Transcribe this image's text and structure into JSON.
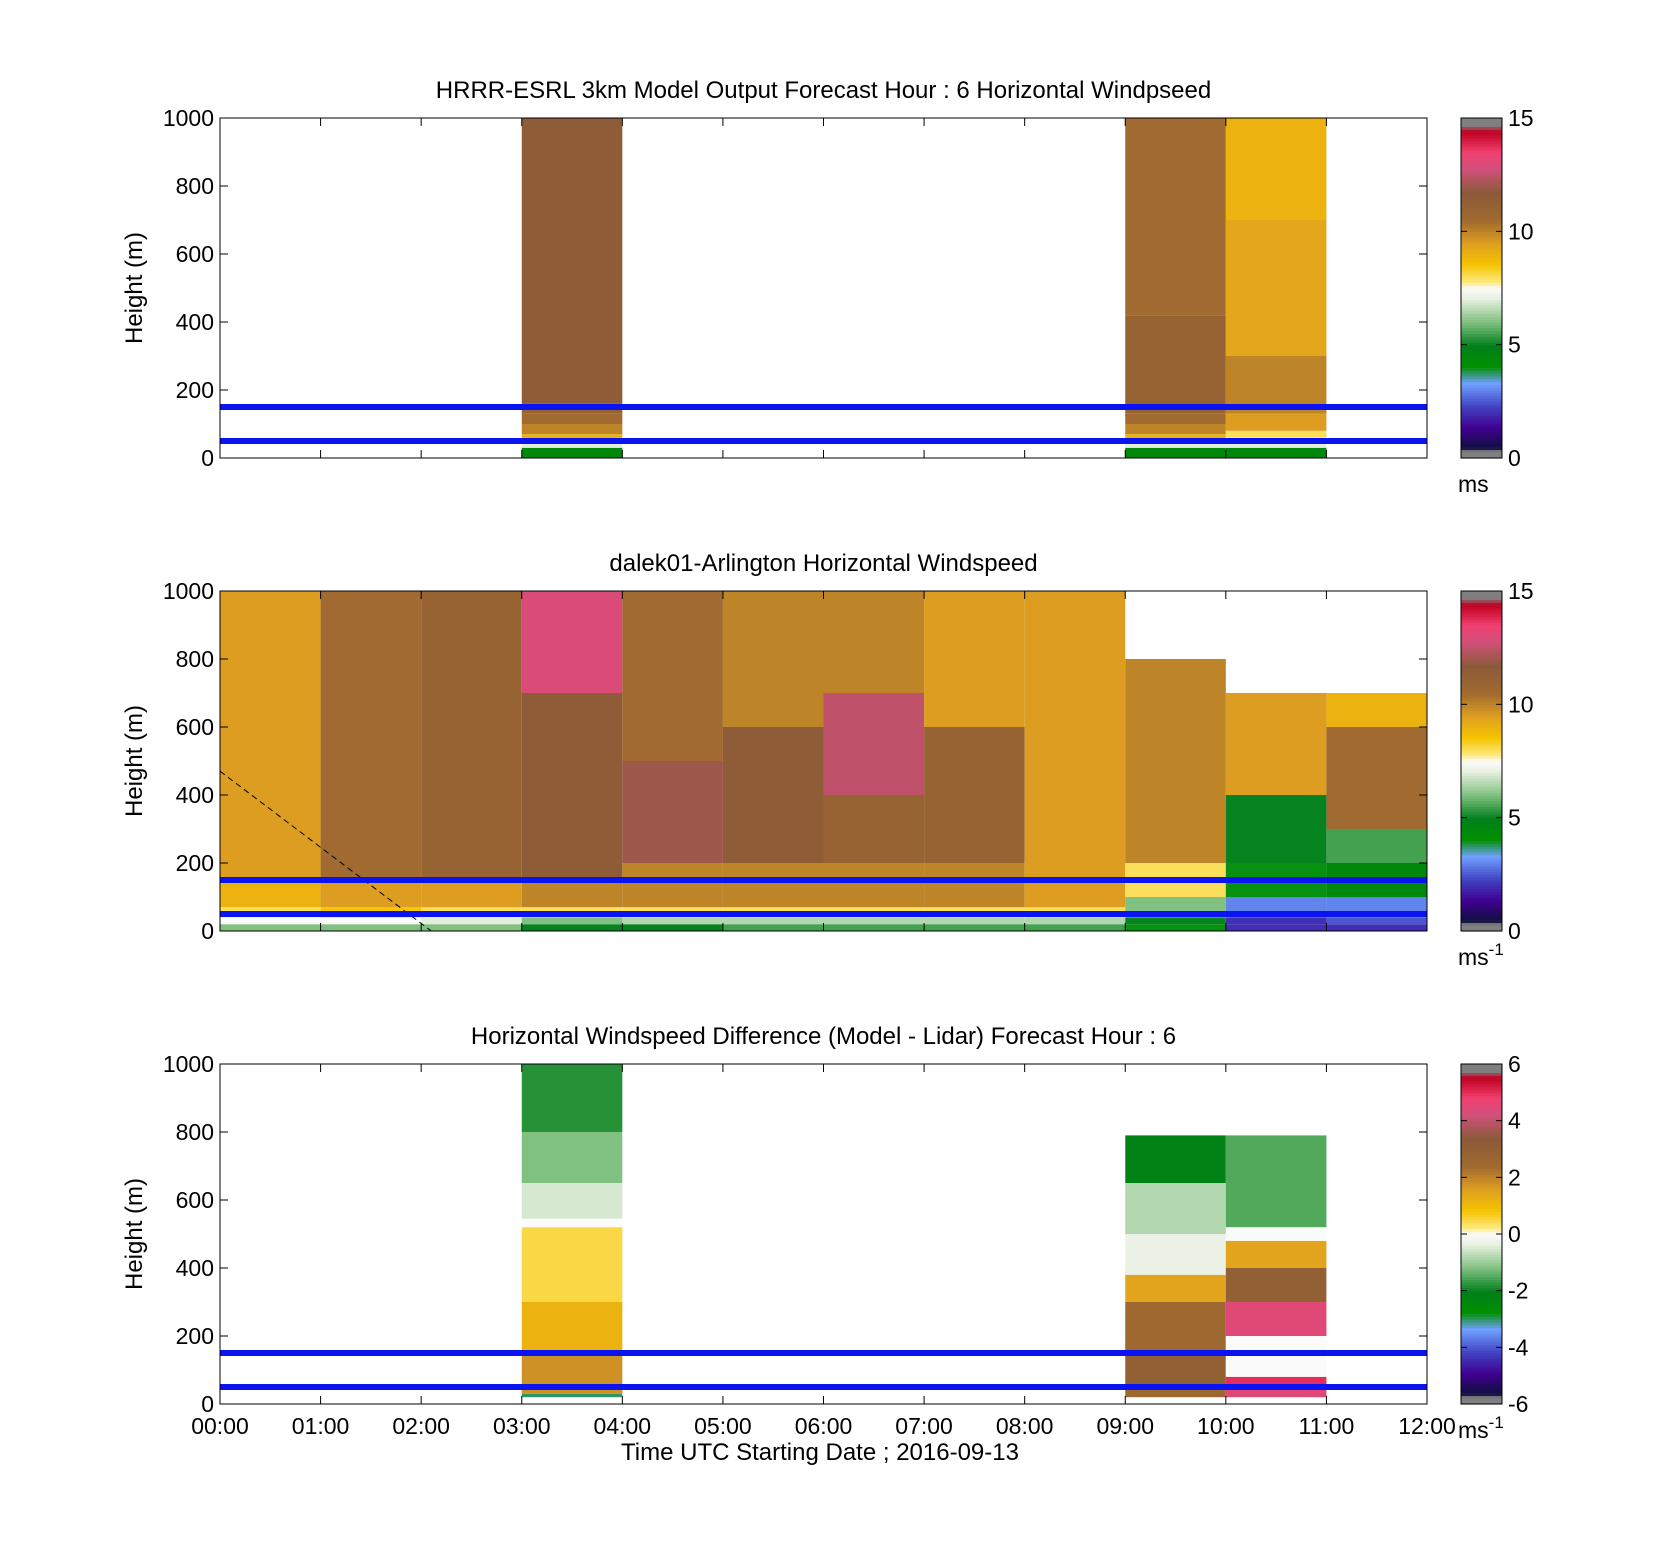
{
  "x_tick_labels": [
    "00:00",
    "01:00",
    "02:00",
    "03:00",
    "04:00",
    "05:00",
    "06:00",
    "07:00",
    "08:00",
    "09:00",
    "10:00",
    "11:00",
    "12:00"
  ],
  "x_label": "Time UTC  Starting Date ; 2016-09-13",
  "y_label": "Height (m)",
  "y_tick_labels": [
    "0",
    "200",
    "400",
    "600",
    "800",
    "1000"
  ],
  "reference_line_color": "#0a14f0",
  "chart_data": [
    {
      "type": "heatmap",
      "title": "HRRR-ESRL 3km Model Output   Forecast Hour : 6 Horizontal Windpseed",
      "xlim": [
        0,
        12
      ],
      "ylim": [
        0,
        1000
      ],
      "colorbar": {
        "min": 0,
        "max": 15,
        "ticks": [
          "0",
          "5",
          "10",
          "15"
        ],
        "unit": "ms",
        "unit_exp": ""
      },
      "reference_lines_m": [
        50,
        150
      ],
      "columns": [
        {
          "t_start": 3,
          "t_end": 4,
          "profile": [
            [
              0,
              30,
              4.5
            ],
            [
              30,
              50,
              7
            ],
            [
              50,
              70,
              9
            ],
            [
              70,
              100,
              10
            ],
            [
              100,
              130,
              10.5
            ],
            [
              130,
              160,
              11
            ],
            [
              160,
              1000,
              11.5
            ]
          ]
        },
        {
          "t_start": 9,
          "t_end": 10,
          "profile": [
            [
              0,
              30,
              4.5
            ],
            [
              30,
              50,
              7
            ],
            [
              50,
              70,
              9
            ],
            [
              70,
              100,
              10
            ],
            [
              100,
              130,
              10.5
            ],
            [
              130,
              420,
              11
            ],
            [
              420,
              1000,
              10.5
            ]
          ]
        },
        {
          "t_start": 10,
          "t_end": 11,
          "profile": [
            [
              0,
              30,
              4.5
            ],
            [
              30,
              60,
              7
            ],
            [
              60,
              80,
              8
            ],
            [
              80,
              130,
              9.5
            ],
            [
              130,
              300,
              10
            ],
            [
              300,
              700,
              9.3
            ],
            [
              700,
              1000,
              9
            ]
          ]
        }
      ]
    },
    {
      "type": "heatmap",
      "title": "dalek01-Arlington  Horizontal Windspeed",
      "xlim": [
        0,
        12
      ],
      "ylim": [
        0,
        1000
      ],
      "colorbar": {
        "min": 0,
        "max": 15,
        "ticks": [
          "0",
          "5",
          "10",
          "15"
        ],
        "unit": "ms",
        "unit_exp": "-1"
      },
      "reference_lines_m": [
        50,
        150
      ],
      "dashed_line": {
        "x": [
          0,
          2.1
        ],
        "y": [
          470,
          0
        ]
      },
      "columns": [
        {
          "t_start": 0,
          "t_end": 1,
          "profile": [
            [
              0,
              20,
              6
            ],
            [
              20,
              40,
              7.5
            ],
            [
              40,
              70,
              8
            ],
            [
              70,
              150,
              9
            ],
            [
              150,
              1000,
              9.5
            ]
          ]
        },
        {
          "t_start": 1,
          "t_end": 2,
          "profile": [
            [
              0,
              20,
              6
            ],
            [
              20,
              40,
              7.5
            ],
            [
              40,
              70,
              8.5
            ],
            [
              70,
              150,
              9.5
            ],
            [
              150,
              1000,
              10.5
            ]
          ]
        },
        {
          "t_start": 2,
          "t_end": 3,
          "profile": [
            [
              0,
              20,
              6
            ],
            [
              20,
              40,
              7
            ],
            [
              40,
              70,
              8
            ],
            [
              70,
              150,
              9.5
            ],
            [
              150,
              1000,
              11
            ]
          ]
        },
        {
          "t_start": 3,
          "t_end": 4,
          "profile": [
            [
              0,
              20,
              5
            ],
            [
              20,
              40,
              6
            ],
            [
              40,
              70,
              8
            ],
            [
              70,
              150,
              10
            ],
            [
              150,
              700,
              11.5
            ],
            [
              700,
              1000,
              13
            ]
          ]
        },
        {
          "t_start": 4,
          "t_end": 5,
          "profile": [
            [
              0,
              20,
              5
            ],
            [
              20,
              40,
              6.5
            ],
            [
              40,
              70,
              8
            ],
            [
              70,
              200,
              10
            ],
            [
              200,
              500,
              12
            ],
            [
              500,
              1000,
              10.5
            ]
          ]
        },
        {
          "t_start": 5,
          "t_end": 6,
          "profile": [
            [
              0,
              20,
              5.5
            ],
            [
              20,
              40,
              6.5
            ],
            [
              40,
              70,
              8
            ],
            [
              70,
              200,
              10
            ],
            [
              200,
              600,
              11.5
            ],
            [
              600,
              1000,
              10
            ]
          ]
        },
        {
          "t_start": 6,
          "t_end": 7,
          "profile": [
            [
              0,
              20,
              5.5
            ],
            [
              20,
              40,
              6.5
            ],
            [
              40,
              70,
              8
            ],
            [
              70,
              200,
              10
            ],
            [
              200,
              400,
              11
            ],
            [
              400,
              700,
              12.5
            ],
            [
              700,
              1000,
              10
            ]
          ]
        },
        {
          "t_start": 7,
          "t_end": 8,
          "profile": [
            [
              0,
              20,
              5.5
            ],
            [
              20,
              40,
              6.5
            ],
            [
              40,
              70,
              8
            ],
            [
              70,
              200,
              10
            ],
            [
              200,
              600,
              11
            ],
            [
              600,
              1000,
              9.5
            ]
          ]
        },
        {
          "t_start": 8,
          "t_end": 9,
          "profile": [
            [
              0,
              20,
              5.5
            ],
            [
              20,
              40,
              6.5
            ],
            [
              40,
              70,
              8
            ],
            [
              70,
              200,
              9.5
            ],
            [
              200,
              1000,
              9.5
            ]
          ]
        },
        {
          "t_start": 9,
          "t_end": 10,
          "profile": [
            [
              0,
              20,
              4
            ],
            [
              20,
              40,
              5
            ],
            [
              40,
              100,
              6
            ],
            [
              100,
              200,
              8
            ],
            [
              200,
              800,
              10
            ]
          ]
        },
        {
          "t_start": 10,
          "t_end": 11,
          "profile": [
            [
              0,
              20,
              2
            ],
            [
              20,
              40,
              2
            ],
            [
              40,
              100,
              3
            ],
            [
              100,
              200,
              4
            ],
            [
              200,
              400,
              5
            ],
            [
              400,
              700,
              9.5
            ]
          ]
        },
        {
          "t_start": 11,
          "t_end": 12,
          "profile": [
            [
              0,
              20,
              2
            ],
            [
              20,
              40,
              2.5
            ],
            [
              40,
              100,
              3
            ],
            [
              100,
              200,
              4.5
            ],
            [
              200,
              300,
              5.5
            ],
            [
              300,
              600,
              10.5
            ],
            [
              600,
              700,
              9
            ]
          ]
        }
      ]
    },
    {
      "type": "heatmap",
      "title": "Horizontal Windspeed Difference (Model - Lidar) Forecast Hour : 6",
      "xlim": [
        0,
        12
      ],
      "ylim": [
        0,
        1000
      ],
      "colorbar": {
        "min": -6,
        "max": 6,
        "ticks": [
          "-6",
          "-4",
          "-2",
          "0",
          "2",
          "4",
          "6"
        ],
        "unit": "ms",
        "unit_exp": "-1"
      },
      "reference_lines_m": [
        50,
        150
      ],
      "columns": [
        {
          "t_start": 3,
          "t_end": 4,
          "profile": [
            [
              20,
              30,
              -3
            ],
            [
              30,
              150,
              1.8
            ],
            [
              150,
              300,
              1.2
            ],
            [
              300,
              520,
              0.5
            ],
            [
              520,
              545,
              0.0
            ],
            [
              545,
              650,
              -0.5
            ],
            [
              650,
              800,
              -1.2
            ],
            [
              800,
              1000,
              -1.8
            ]
          ]
        },
        {
          "t_start": 9,
          "t_end": 10,
          "profile": [
            [
              20,
              50,
              2.5
            ],
            [
              50,
              150,
              3
            ],
            [
              150,
              300,
              2.5
            ],
            [
              300,
              380,
              1.5
            ],
            [
              380,
              500,
              -0.3
            ],
            [
              500,
              650,
              -0.8
            ],
            [
              650,
              790,
              -2.2
            ]
          ]
        },
        {
          "t_start": 10,
          "t_end": 11,
          "profile": [
            [
              20,
              50,
              4.5
            ],
            [
              50,
              80,
              5
            ],
            [
              80,
              200,
              0
            ],
            [
              200,
              300,
              4.5
            ],
            [
              300,
              400,
              3
            ],
            [
              400,
              480,
              1.5
            ],
            [
              480,
              520,
              0
            ],
            [
              520,
              790,
              -1.5
            ]
          ]
        }
      ]
    }
  ]
}
